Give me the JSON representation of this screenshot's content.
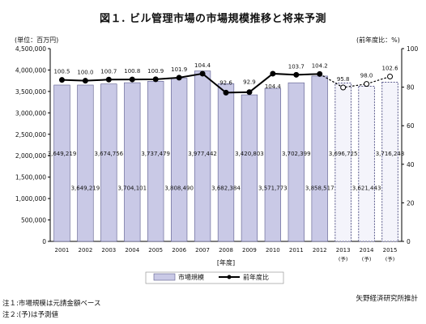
{
  "title": "図１. ビル管理市場の市場規模推移と将来予測",
  "unit_left": "(単位：百万円)",
  "unit_right": "(前年度比：%)",
  "xlabel": "[年度]",
  "source": "矢野経済研究所推計",
  "notes": [
    "注１:市場規模は元請金額ベース",
    "注２:(予)は予測値"
  ],
  "legend": {
    "bar": "市場規模",
    "line": "前年度比"
  },
  "chart_data": {
    "type": "bar",
    "categories": [
      "2001",
      "2002",
      "2003",
      "2004",
      "2005",
      "2006",
      "2007",
      "2008",
      "2009",
      "2010",
      "2011",
      "2012",
      "2013",
      "2014",
      "2015"
    ],
    "forecast_marks": [
      "",
      "",
      "",
      "",
      "",
      "",
      "",
      "",
      "",
      "",
      "",
      "",
      "(予)",
      "(予)",
      "(予)"
    ],
    "ylim": [
      0,
      4500000
    ],
    "ylim_right": [
      0,
      120
    ],
    "yticks": [
      "0",
      "500,000",
      "1,000,000",
      "1,500,000",
      "2,000,000",
      "2,500,000",
      "3,000,000",
      "3,500,000",
      "4,000,000",
      "4,500,000"
    ],
    "yticks_right": [
      "0",
      "20",
      "40",
      "60",
      "80",
      "100"
    ],
    "series": [
      {
        "name": "市場規模",
        "axis": "left",
        "values": [
          3649219,
          3649219,
          3674756,
          3704101,
          3737479,
          3808490,
          3977442,
          3682384,
          3420803,
          3571773,
          3702399,
          3858517,
          3696725,
          3621443,
          3716243
        ],
        "labels": [
          "3,649,219",
          "3,649,219",
          "3,674,756",
          "3,704,101",
          "3,737,479",
          "3,808,490",
          "3,977,442",
          "3,682,384",
          "3,420,803",
          "3,571,773",
          "3,702,399",
          "3,858,517",
          "3,696,725",
          "3,621,443",
          "3,716,243"
        ],
        "forecast_from_index": 12
      },
      {
        "name": "前年度比",
        "axis": "right",
        "values": [
          100.5,
          100.0,
          100.7,
          100.8,
          100.9,
          101.9,
          104.4,
          92.6,
          92.9,
          104.4,
          103.7,
          104.2,
          95.8,
          98.0,
          102.6
        ],
        "labels": [
          "100.5",
          "100.0",
          "100.7",
          "100.8",
          "100.9",
          "101.9",
          "104.4",
          "92.6",
          "92.9",
          "104.4",
          "103.7",
          "104.2",
          "95.8",
          "98.0",
          "102.6"
        ],
        "forecast_from_index": 12
      }
    ],
    "legend_position": "bottom",
    "grid": false
  },
  "colors": {
    "bar_fill": "#c9c9e6",
    "bar_stroke": "#5a5a8c",
    "forecast_fill": "#f4f4fb",
    "line": "#000000"
  }
}
